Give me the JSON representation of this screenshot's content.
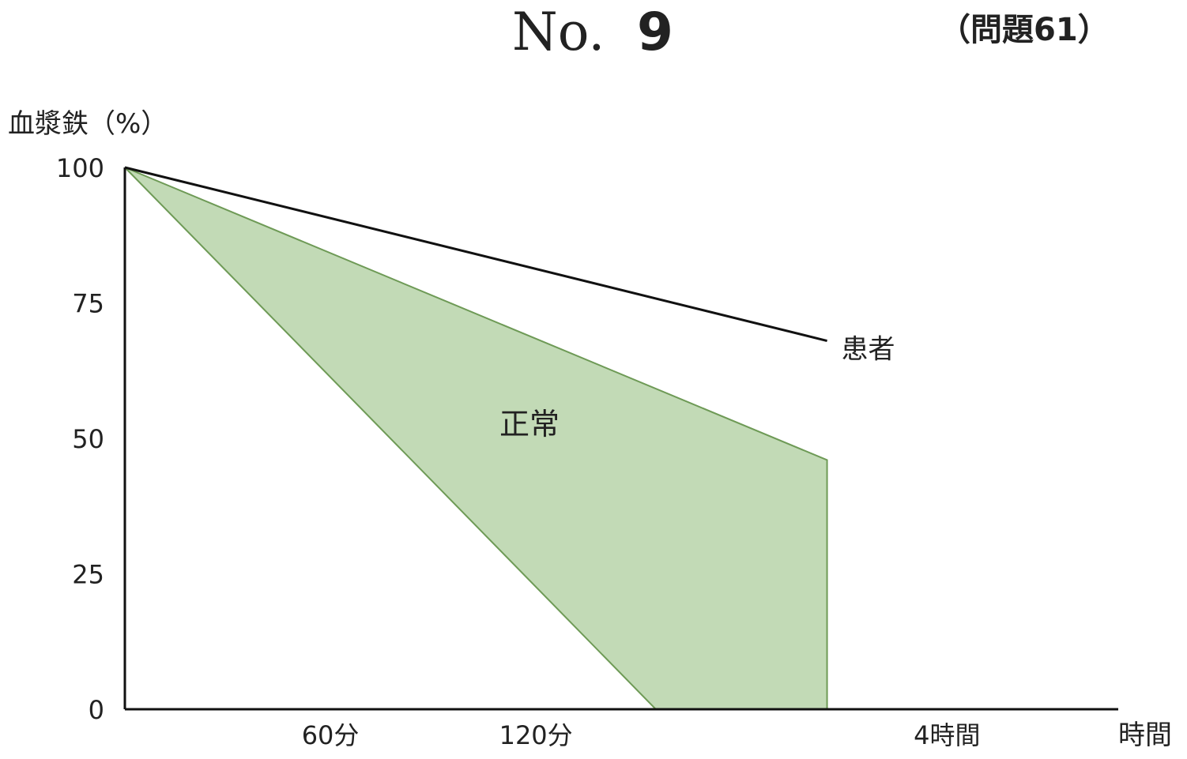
{
  "header": {
    "no_label": "No.",
    "no_value": "9",
    "question_ref": "（問題61）"
  },
  "chart_data": {
    "type": "area",
    "ylabel": "血漿鉄（%）",
    "xlabel": "時間",
    "y_ticks": [
      "100",
      "75",
      "50",
      "25",
      "0"
    ],
    "ylim": [
      0,
      100
    ],
    "x_tick_labels": [
      "60分",
      "120分",
      "4時間"
    ],
    "x_tick_values_min": [
      60,
      120,
      240
    ],
    "xlim_min": [
      0,
      290
    ],
    "grid": false,
    "series": [
      {
        "name": "患者",
        "style": "line",
        "color": "#111111",
        "x": [
          0,
          205
        ],
        "y": [
          100,
          68
        ]
      },
      {
        "name": "正常",
        "style": "band",
        "fill": "#c2dab6",
        "stroke": "#6e9a56",
        "upper": {
          "x": [
            0,
            205
          ],
          "y": [
            100,
            46
          ]
        },
        "lower": {
          "x": [
            0,
            155,
            205
          ],
          "y": [
            100,
            0,
            0
          ]
        }
      }
    ]
  }
}
